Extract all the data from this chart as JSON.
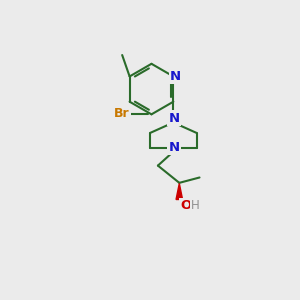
{
  "bg_color": "#ebebeb",
  "bond_color": "#2a6b2a",
  "n_color": "#1818cc",
  "br_color": "#c87800",
  "o_color": "#cc0000",
  "h_color": "#909090",
  "lw": 1.5,
  "figsize": [
    3.0,
    3.0
  ],
  "dpi": 100,
  "xlim": [
    0,
    10
  ],
  "ylim": [
    0,
    10
  ]
}
